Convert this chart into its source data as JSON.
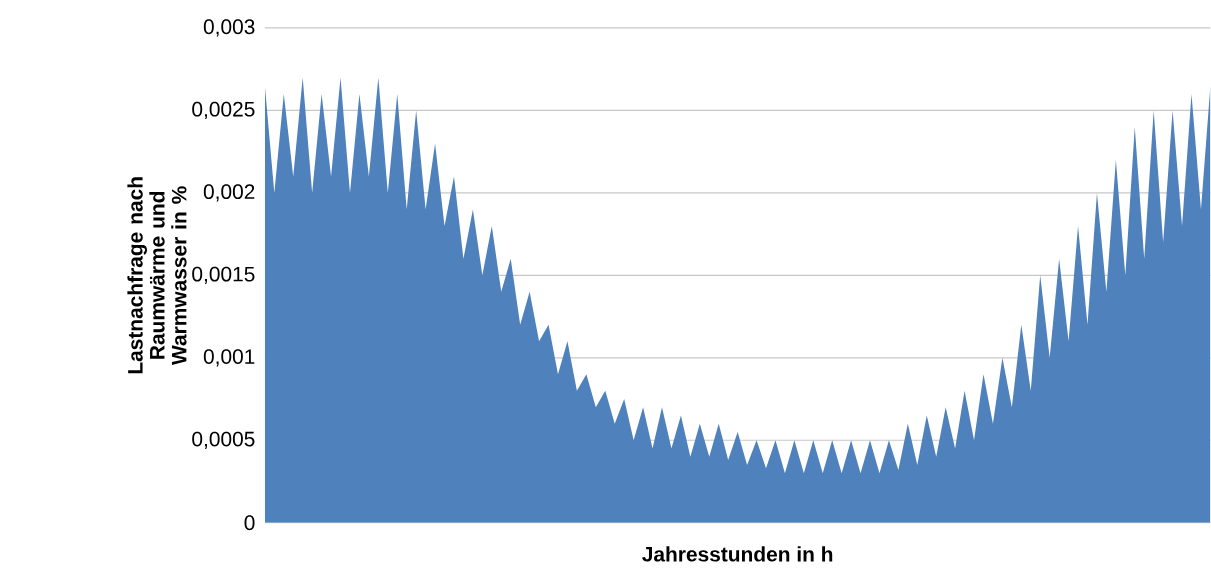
{
  "chart_data": {
    "type": "area",
    "xlabel": "Jahresstunden in h",
    "ylabel": "Lastnachfrage nach Raumwärme und Warmwasser in %",
    "categories": [
      null,
      null,
      null,
      null,
      null,
      null,
      null,
      null,
      null,
      null,
      null,
      null,
      null,
      null,
      null,
      null,
      null,
      null,
      null,
      null,
      null,
      null,
      null,
      null,
      null,
      null,
      null,
      null,
      null,
      null,
      null,
      null,
      null,
      null,
      null,
      null,
      null,
      null,
      null,
      null,
      null,
      null,
      null,
      null,
      null,
      null,
      null,
      null,
      null,
      null,
      null,
      null,
      null,
      null,
      null,
      null,
      null,
      null,
      null,
      null,
      null,
      null,
      null,
      null,
      null,
      null,
      null,
      null,
      null,
      null,
      null,
      null,
      null,
      null,
      null,
      null,
      null,
      null,
      null,
      null,
      null,
      null,
      null,
      null,
      null,
      null,
      null,
      null,
      null,
      null,
      null,
      null,
      null,
      null,
      null,
      null,
      null,
      null,
      null,
      null,
      null
    ],
    "values": [
      0.00265,
      0.002,
      0.0026,
      0.0021,
      0.0027,
      0.002,
      0.0026,
      0.0021,
      0.0027,
      0.002,
      0.0026,
      0.0021,
      0.0027,
      0.002,
      0.0026,
      0.0019,
      0.0025,
      0.0019,
      0.0023,
      0.0018,
      0.0021,
      0.0016,
      0.0019,
      0.0015,
      0.0018,
      0.0014,
      0.0016,
      0.0012,
      0.0014,
      0.0011,
      0.0012,
      0.0009,
      0.0011,
      0.0008,
      0.0009,
      0.0007,
      0.0008,
      0.0006,
      0.00075,
      0.0005,
      0.0007,
      0.00045,
      0.0007,
      0.00045,
      0.00065,
      0.0004,
      0.0006,
      0.0004,
      0.0006,
      0.00038,
      0.00055,
      0.00035,
      0.0005,
      0.00033,
      0.0005,
      0.0003,
      0.0005,
      0.0003,
      0.0005,
      0.0003,
      0.0005,
      0.0003,
      0.0005,
      0.0003,
      0.0005,
      0.0003,
      0.0005,
      0.00032,
      0.0006,
      0.00035,
      0.00065,
      0.0004,
      0.0007,
      0.00045,
      0.0008,
      0.0005,
      0.0009,
      0.0006,
      0.001,
      0.0007,
      0.0012,
      0.0008,
      0.0015,
      0.001,
      0.0016,
      0.0011,
      0.0018,
      0.0012,
      0.002,
      0.0014,
      0.0022,
      0.0015,
      0.0024,
      0.0016,
      0.0025,
      0.0017,
      0.0025,
      0.0018,
      0.0026,
      0.0019,
      0.00265
    ],
    "color": "#4f81bd",
    "ylim": [
      0,
      0.003
    ],
    "yticks": [
      0,
      {
        "value": 0.0005,
        "label": "0,0005"
      },
      {
        "value": 0.001,
        "label": "0,001"
      },
      {
        "value": 0.0015,
        "label": "0,0015"
      },
      {
        "value": 0.002,
        "label": "0,002"
      },
      {
        "value": 0.0025,
        "label": "0,0025"
      },
      {
        "value": 0.003,
        "label": "0,003"
      }
    ],
    "grid": "y"
  }
}
